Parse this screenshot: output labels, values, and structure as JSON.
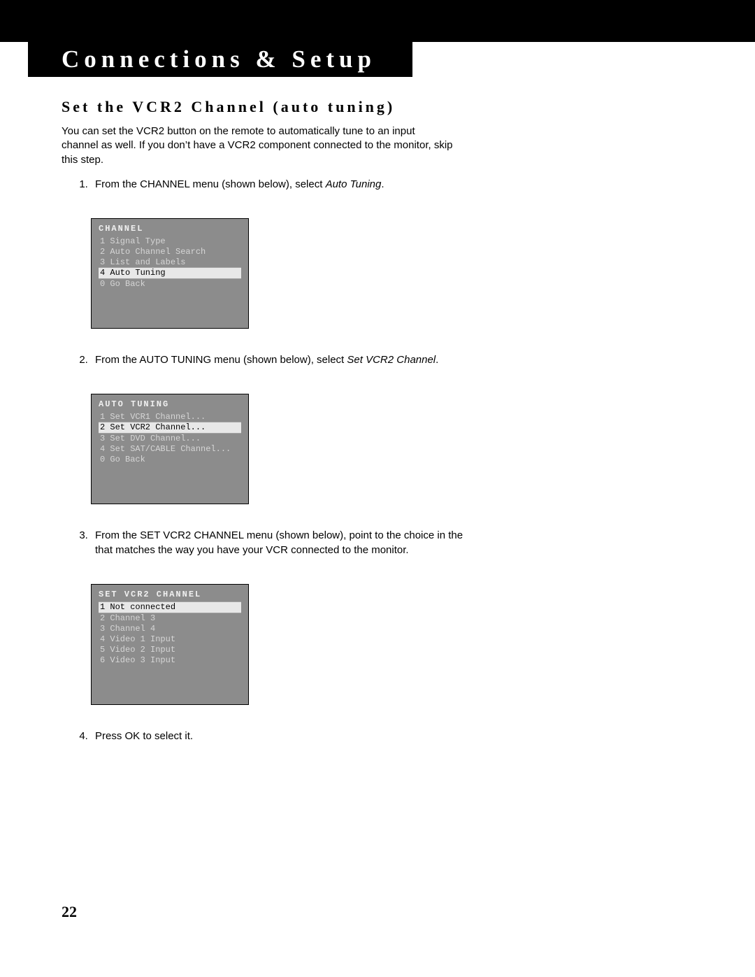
{
  "header": {
    "title": "Connections & Setup"
  },
  "section": {
    "heading": "Set the VCR2 Channel (auto tuning)",
    "intro": "You can set the VCR2 button on the remote to automatically tune to an input channel as well. If you don’t have a VCR2 component connected to the monitor, skip this step."
  },
  "steps": {
    "s1_pre": "From the CHANNEL menu (shown below), select ",
    "s1_em": "Auto Tuning",
    "s1_post": ".",
    "s2_pre": "From the AUTO TUNING menu (shown below), select ",
    "s2_em": "Set VCR2 Channel",
    "s2_post": ".",
    "s3": "From the SET VCR2 CHANNEL menu (shown below), point to the choice in the that matches the way you have your VCR connected to the monitor.",
    "s4": "Press OK to select it."
  },
  "menus": {
    "channel": {
      "title": "CHANNEL",
      "items": [
        {
          "num": "1",
          "label": "Signal Type",
          "selected": false
        },
        {
          "num": "2",
          "label": "Auto Channel Search",
          "selected": false
        },
        {
          "num": "3",
          "label": "List and Labels",
          "selected": false
        },
        {
          "num": "4",
          "label": "Auto Tuning",
          "selected": true
        },
        {
          "num": "0",
          "label": "Go Back",
          "selected": false
        }
      ]
    },
    "auto_tuning": {
      "title": "AUTO TUNING",
      "items": [
        {
          "num": "1",
          "label": "Set VCR1 Channel...",
          "selected": false
        },
        {
          "num": "2",
          "label": "Set VCR2 Channel...",
          "selected": true
        },
        {
          "num": "3",
          "label": "Set DVD Channel...",
          "selected": false
        },
        {
          "num": "4",
          "label": "Set SAT/CABLE Channel...",
          "selected": false
        },
        {
          "num": "0",
          "label": "Go Back",
          "selected": false
        }
      ]
    },
    "set_vcr2": {
      "title": "SET VCR2 CHANNEL",
      "items": [
        {
          "num": "1",
          "label": "Not connected",
          "selected": true
        },
        {
          "num": "2",
          "label": "Channel 3",
          "selected": false
        },
        {
          "num": "3",
          "label": "Channel 4",
          "selected": false
        },
        {
          "num": "4",
          "label": "Video 1 Input",
          "selected": false
        },
        {
          "num": "5",
          "label": "Video 2 Input",
          "selected": false
        },
        {
          "num": "6",
          "label": "Video 3 Input",
          "selected": false
        }
      ]
    }
  },
  "page_number": "22",
  "style": {
    "page_bg": "#ffffff",
    "menu_bg": "#8c8c8c",
    "menu_text": "#d6d6d6",
    "menu_title_text": "#f0f0f0",
    "menu_selected_bg": "#e8e8e8",
    "menu_selected_text": "#000000",
    "menu_border": "#000000",
    "header_bg": "#000000",
    "header_text": "#ffffff",
    "menu_font": "Courier New",
    "body_font": "Arial",
    "heading_font": "Times New Roman"
  }
}
